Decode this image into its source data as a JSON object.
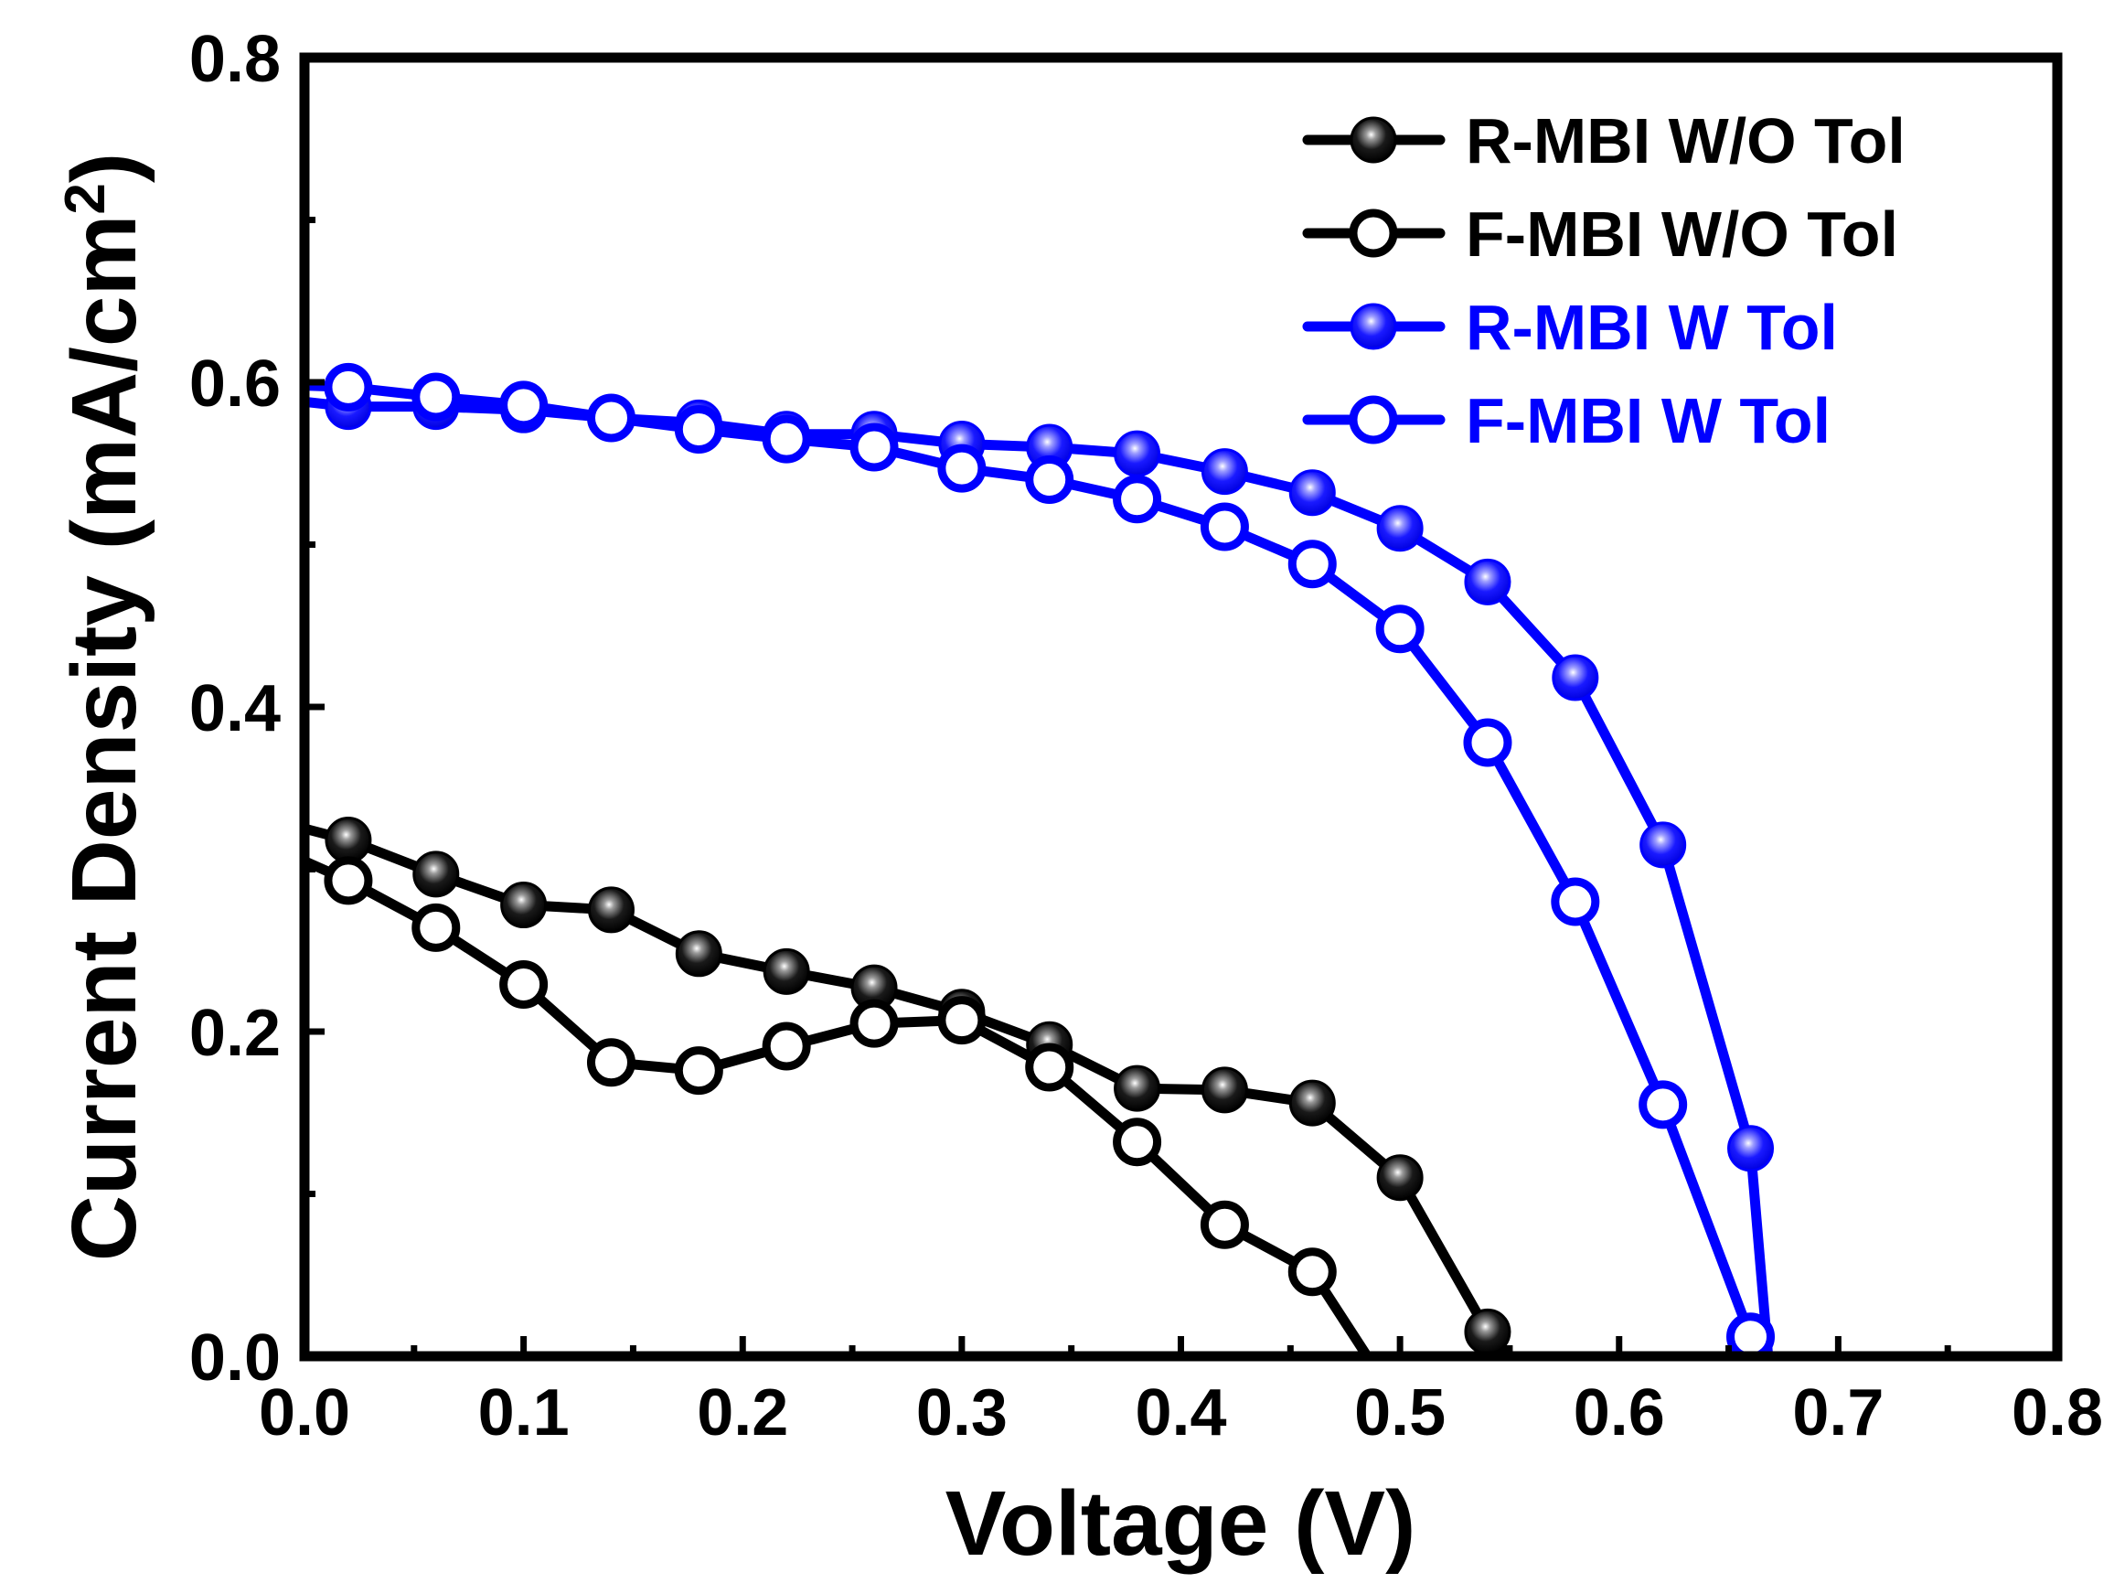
{
  "chart_data": {
    "type": "line",
    "xlabel": "Voltage (V)",
    "ylabel_main": "Current Density (mA/cm",
    "ylabel_sup": "2",
    "ylabel_close": ")",
    "xlim": [
      0.0,
      0.8
    ],
    "ylim": [
      0.0,
      0.8
    ],
    "xticks": [
      0.0,
      0.1,
      0.2,
      0.3,
      0.4,
      0.5,
      0.6,
      0.7,
      0.8
    ],
    "xtick_labels": [
      "0.0",
      "0.1",
      "0.2",
      "0.3",
      "0.4",
      "0.5",
      "0.6",
      "0.7",
      "0.8"
    ],
    "yticks": [
      0.0,
      0.2,
      0.4,
      0.6,
      0.8
    ],
    "ytick_labels": [
      "0.0",
      "0.2",
      "0.4",
      "0.6",
      "0.8"
    ],
    "grid": false,
    "legend_position": "top-right",
    "series": [
      {
        "name": "R-MBI W/O Tol",
        "color": "#000000",
        "marker": "filled-sphere",
        "x": [
          0.0,
          0.02,
          0.06,
          0.1,
          0.14,
          0.18,
          0.22,
          0.26,
          0.3,
          0.34,
          0.38,
          0.42,
          0.46,
          0.5,
          0.54,
          0.55
        ],
        "y": [
          0.325,
          0.318,
          0.297,
          0.278,
          0.275,
          0.248,
          0.237,
          0.227,
          0.212,
          0.192,
          0.165,
          0.164,
          0.156,
          0.11,
          0.015,
          0.0
        ],
        "markers": [
          false,
          true,
          true,
          true,
          true,
          true,
          true,
          true,
          true,
          true,
          true,
          true,
          true,
          true,
          true,
          false
        ]
      },
      {
        "name": "F-MBI W/O Tol",
        "color": "#000000",
        "marker": "open-circle",
        "x": [
          0.0,
          0.02,
          0.06,
          0.1,
          0.14,
          0.18,
          0.22,
          0.26,
          0.3,
          0.34,
          0.38,
          0.42,
          0.46,
          0.485
        ],
        "y": [
          0.305,
          0.293,
          0.264,
          0.229,
          0.181,
          0.176,
          0.191,
          0.205,
          0.207,
          0.178,
          0.132,
          0.081,
          0.052,
          0.0
        ],
        "markers": [
          false,
          true,
          true,
          true,
          true,
          true,
          true,
          true,
          true,
          true,
          true,
          true,
          true,
          false
        ]
      },
      {
        "name": "R-MBI W Tol",
        "color": "#0000ff",
        "marker": "filled-sphere",
        "x": [
          0.0,
          0.02,
          0.06,
          0.1,
          0.14,
          0.18,
          0.22,
          0.26,
          0.3,
          0.34,
          0.38,
          0.42,
          0.46,
          0.5,
          0.54,
          0.58,
          0.62,
          0.66,
          0.668
        ],
        "y": [
          0.588,
          0.585,
          0.585,
          0.583,
          0.578,
          0.575,
          0.568,
          0.568,
          0.562,
          0.56,
          0.556,
          0.545,
          0.532,
          0.51,
          0.477,
          0.418,
          0.315,
          0.128,
          0.0
        ],
        "markers": [
          false,
          true,
          true,
          true,
          true,
          true,
          true,
          true,
          true,
          true,
          true,
          true,
          true,
          true,
          true,
          true,
          true,
          true,
          false
        ]
      },
      {
        "name": "F-MBI W Tol",
        "color": "#0000ff",
        "marker": "open-circle",
        "x": [
          0.0,
          0.02,
          0.06,
          0.1,
          0.14,
          0.18,
          0.22,
          0.26,
          0.3,
          0.34,
          0.38,
          0.42,
          0.46,
          0.5,
          0.54,
          0.58,
          0.62,
          0.66
        ],
        "y": [
          0.598,
          0.597,
          0.591,
          0.586,
          0.578,
          0.571,
          0.565,
          0.56,
          0.547,
          0.54,
          0.528,
          0.511,
          0.488,
          0.448,
          0.378,
          0.28,
          0.155,
          0.012
        ],
        "markers": [
          false,
          true,
          true,
          true,
          true,
          true,
          true,
          true,
          true,
          true,
          true,
          true,
          true,
          true,
          true,
          true,
          true,
          true
        ]
      }
    ]
  }
}
